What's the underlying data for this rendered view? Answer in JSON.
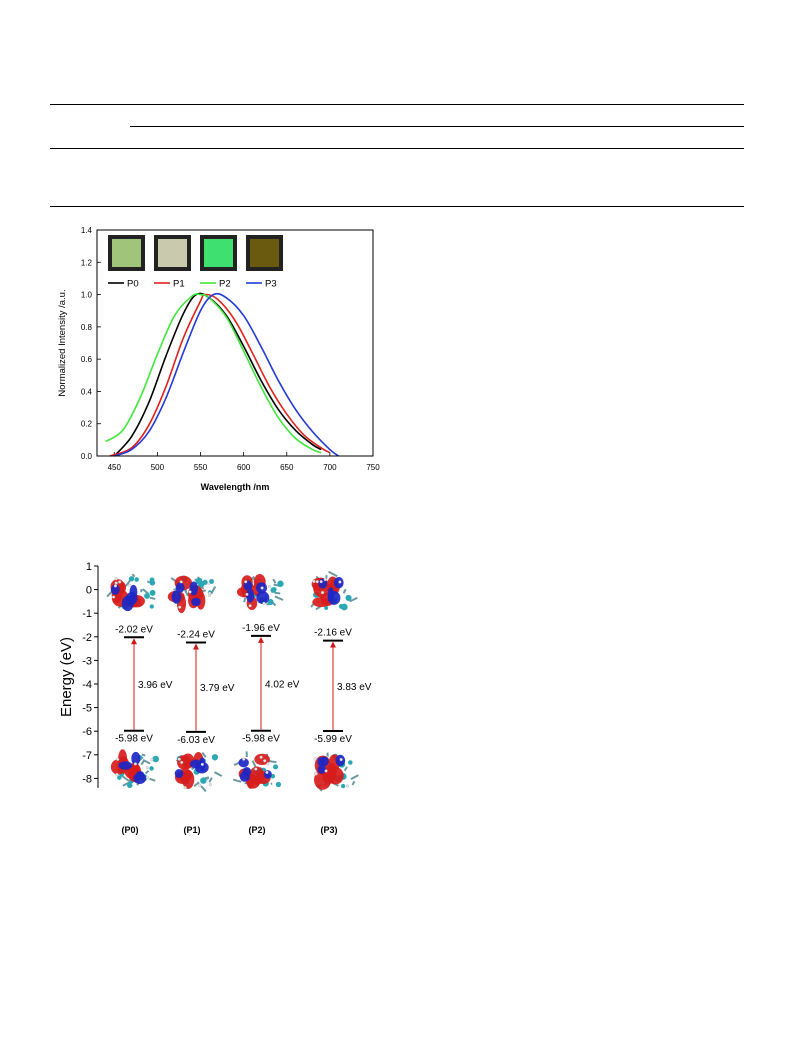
{
  "figure1": {
    "chart_data": {
      "type": "line",
      "xlabel": "Wavelength /nm",
      "ylabel": "Normalized Intensity /a.u.",
      "xlim": [
        430,
        750
      ],
      "ylim": [
        0.0,
        1.4
      ],
      "xticks": [
        "450",
        "500",
        "550",
        "600",
        "650",
        "700",
        "750"
      ],
      "yticks": [
        "0.0",
        "0.2",
        "0.4",
        "0.6",
        "0.8",
        "1.0",
        "1.2",
        "1.4"
      ],
      "legend_position": "top-left",
      "series": [
        {
          "name": "P0",
          "color": "#000000",
          "x": [
            450,
            470,
            490,
            510,
            530,
            545,
            560,
            580,
            600,
            620,
            640,
            660,
            680,
            690
          ],
          "y": [
            0.0,
            0.12,
            0.33,
            0.62,
            0.88,
            1.0,
            0.98,
            0.87,
            0.68,
            0.47,
            0.29,
            0.16,
            0.07,
            0.04
          ]
        },
        {
          "name": "P1",
          "color": "#e0211b",
          "x": [
            445,
            470,
            490,
            510,
            530,
            550,
            555,
            570,
            590,
            610,
            630,
            650,
            670,
            690,
            700
          ],
          "y": [
            0.0,
            0.05,
            0.19,
            0.43,
            0.73,
            0.96,
            1.0,
            0.97,
            0.84,
            0.64,
            0.43,
            0.26,
            0.13,
            0.05,
            0.02
          ]
        },
        {
          "name": "P2",
          "color": "#3ee83a",
          "x": [
            440,
            460,
            480,
            500,
            520,
            540,
            550,
            560,
            580,
            600,
            620,
            640,
            660,
            680,
            690
          ],
          "y": [
            0.09,
            0.16,
            0.36,
            0.63,
            0.87,
            0.99,
            1.0,
            0.98,
            0.86,
            0.65,
            0.43,
            0.24,
            0.11,
            0.04,
            0.02
          ]
        },
        {
          "name": "P3",
          "color": "#2239d8",
          "x": [
            450,
            470,
            490,
            510,
            530,
            550,
            565,
            580,
            600,
            620,
            640,
            660,
            680,
            700,
            710
          ],
          "y": [
            0.0,
            0.04,
            0.15,
            0.36,
            0.64,
            0.9,
            1.0,
            0.98,
            0.87,
            0.68,
            0.47,
            0.29,
            0.15,
            0.04,
            0.0
          ]
        }
      ]
    },
    "swatches": [
      {
        "name": "P0",
        "color": "#9fc47a"
      },
      {
        "name": "P1",
        "color": "#c9c9ae"
      },
      {
        "name": "P2",
        "color": "#3ee070"
      },
      {
        "name": "P3",
        "color": "#6a5a10"
      }
    ]
  },
  "figure2": {
    "chart_data": {
      "type": "diagram",
      "ylabel": "Energy (eV)",
      "ylim": [
        -8.5,
        1
      ],
      "yticks": [
        "1",
        "0",
        "-1",
        "-2",
        "-3",
        "-4",
        "-5",
        "-6",
        "-7",
        "-8"
      ],
      "columns": [
        {
          "label": "(P0)",
          "lumo": -2.02,
          "homo": -5.98,
          "lumo_text": "-2.02 eV",
          "homo_text": "-5.98 eV",
          "gap_text": "3.96 eV"
        },
        {
          "label": "(P1)",
          "lumo": -2.24,
          "homo": -6.03,
          "lumo_text": "-2.24 eV",
          "homo_text": "-6.03 eV",
          "gap_text": "3.79 eV"
        },
        {
          "label": "(P2)",
          "lumo": -1.96,
          "homo": -5.98,
          "lumo_text": "-1.96 eV",
          "homo_text": "-5.98 eV",
          "gap_text": "4.02 eV"
        },
        {
          "label": "(P3)",
          "lumo": -2.16,
          "homo": -5.99,
          "lumo_text": "-2.16 eV",
          "homo_text": "-5.99 eV",
          "gap_text": "3.83 eV"
        }
      ]
    }
  }
}
